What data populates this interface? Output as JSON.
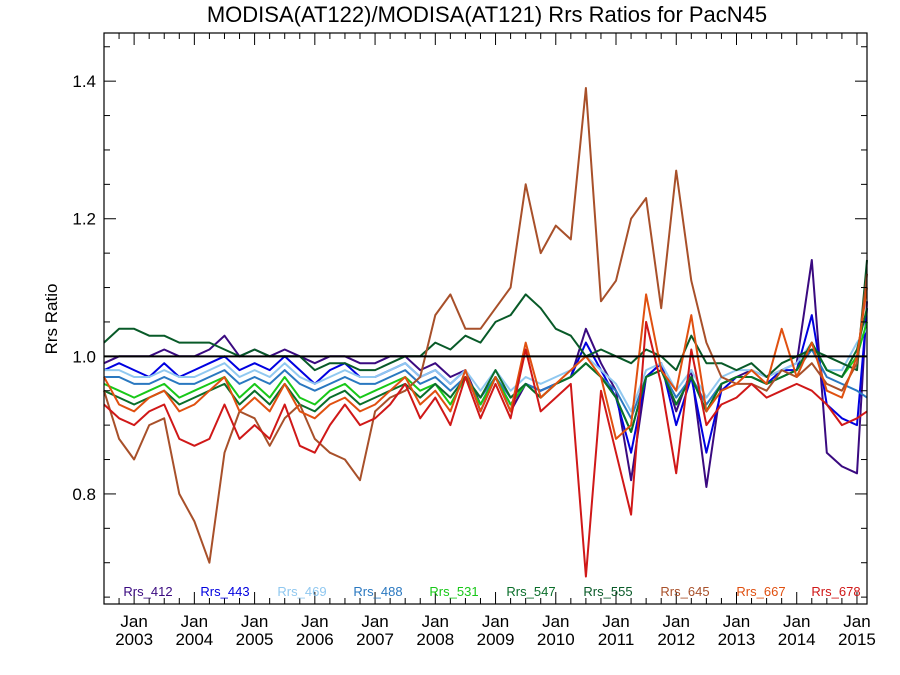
{
  "chart_data": {
    "type": "line",
    "title": "MODISA(AT122)/MODISA(AT121)  Rrs Ratios for PacN45",
    "xlabel": "",
    "ylabel": "Rrs Ratio",
    "xlim": [
      "2002-07-01",
      "2015-03-01"
    ],
    "ylim": [
      0.64,
      1.47
    ],
    "yticks": [
      0.8,
      1.0,
      1.2,
      1.4
    ],
    "ytick_labels": [
      "0.8",
      "1.0",
      "1.2",
      "1.4"
    ],
    "xticks": [
      {
        "month": "Jan",
        "year": "2003",
        "date": "2003-01-01"
      },
      {
        "month": "Jan",
        "year": "2004",
        "date": "2004-01-01"
      },
      {
        "month": "Jan",
        "year": "2005",
        "date": "2005-01-01"
      },
      {
        "month": "Jan",
        "year": "2006",
        "date": "2006-01-01"
      },
      {
        "month": "Jan",
        "year": "2007",
        "date": "2007-01-01"
      },
      {
        "month": "Jan",
        "year": "2008",
        "date": "2008-01-01"
      },
      {
        "month": "Jan",
        "year": "2009",
        "date": "2009-01-01"
      },
      {
        "month": "Jan",
        "year": "2010",
        "date": "2010-01-01"
      },
      {
        "month": "Jan",
        "year": "2011",
        "date": "2011-01-01"
      },
      {
        "month": "Jan",
        "year": "2012",
        "date": "2012-01-01"
      },
      {
        "month": "Jan",
        "year": "2013",
        "date": "2013-01-01"
      },
      {
        "month": "Jan",
        "year": "2014",
        "date": "2014-01-01"
      },
      {
        "month": "Jan",
        "year": "2015",
        "date": "2015-01-01"
      }
    ],
    "reference_line": 1.0,
    "grid": false,
    "legend_position": "bottom",
    "dates": [
      "2002-07",
      "2002-10",
      "2003-01",
      "2003-04",
      "2003-07",
      "2003-10",
      "2004-01",
      "2004-04",
      "2004-07",
      "2004-10",
      "2005-01",
      "2005-04",
      "2005-07",
      "2005-10",
      "2006-01",
      "2006-04",
      "2006-07",
      "2006-10",
      "2007-01",
      "2007-04",
      "2007-07",
      "2007-10",
      "2008-01",
      "2008-04",
      "2008-07",
      "2008-10",
      "2009-01",
      "2009-04",
      "2009-07",
      "2009-10",
      "2010-01",
      "2010-04",
      "2010-07",
      "2010-10",
      "2011-01",
      "2011-04",
      "2011-07",
      "2011-10",
      "2012-01",
      "2012-04",
      "2012-07",
      "2012-10",
      "2013-01",
      "2013-04",
      "2013-07",
      "2013-10",
      "2014-01",
      "2014-04",
      "2014-07",
      "2014-10",
      "2015-01",
      "2015-03"
    ],
    "series": [
      {
        "name": "Rrs_412",
        "color": "#3a0a80",
        "values": [
          0.99,
          1.0,
          1.0,
          1.0,
          1.01,
          1.0,
          1.0,
          1.01,
          1.03,
          1.0,
          1.01,
          1.0,
          1.01,
          1.0,
          0.99,
          1.0,
          1.0,
          0.99,
          0.99,
          1.0,
          1.0,
          0.98,
          0.99,
          0.97,
          0.98,
          0.93,
          0.97,
          0.92,
          0.96,
          0.95,
          0.96,
          0.97,
          1.04,
          0.99,
          0.95,
          0.82,
          0.97,
          0.99,
          0.92,
          0.98,
          0.81,
          0.96,
          0.97,
          0.98,
          0.97,
          0.98,
          0.99,
          1.14,
          0.86,
          0.84,
          0.83,
          1.08
        ]
      },
      {
        "name": "Rrs_443",
        "color": "#0000e0",
        "values": [
          0.98,
          0.99,
          0.98,
          0.97,
          0.99,
          0.97,
          0.98,
          0.99,
          1.0,
          0.98,
          0.99,
          0.98,
          1.0,
          0.98,
          0.96,
          0.98,
          0.99,
          0.97,
          0.97,
          0.98,
          0.99,
          0.97,
          0.98,
          0.96,
          0.98,
          0.92,
          0.97,
          0.93,
          0.96,
          0.95,
          0.96,
          0.97,
          1.02,
          0.98,
          0.94,
          0.86,
          0.97,
          0.99,
          0.9,
          0.97,
          0.86,
          0.95,
          0.97,
          0.97,
          0.96,
          0.98,
          0.98,
          1.06,
          0.93,
          0.91,
          0.9,
          1.07
        ]
      },
      {
        "name": "Rrs_469",
        "color": "#90c8f0",
        "values": [
          0.98,
          0.98,
          0.97,
          0.97,
          0.98,
          0.97,
          0.97,
          0.98,
          0.99,
          0.97,
          0.98,
          0.97,
          0.99,
          0.97,
          0.96,
          0.97,
          0.98,
          0.97,
          0.97,
          0.98,
          0.99,
          0.97,
          0.98,
          0.96,
          0.98,
          0.95,
          0.98,
          0.95,
          0.97,
          0.96,
          0.97,
          0.98,
          1.0,
          0.98,
          0.96,
          0.92,
          0.98,
          0.99,
          0.95,
          0.98,
          0.94,
          0.97,
          0.98,
          0.98,
          0.97,
          0.98,
          0.99,
          1.02,
          0.98,
          0.98,
          1.02,
          1.04
        ]
      },
      {
        "name": "Rrs_488",
        "color": "#2a78c0",
        "values": [
          0.97,
          0.97,
          0.96,
          0.96,
          0.97,
          0.96,
          0.96,
          0.97,
          0.98,
          0.96,
          0.97,
          0.96,
          0.98,
          0.96,
          0.95,
          0.96,
          0.97,
          0.96,
          0.96,
          0.97,
          0.98,
          0.96,
          0.97,
          0.95,
          0.97,
          0.94,
          0.97,
          0.94,
          0.96,
          0.95,
          0.96,
          0.97,
          0.99,
          0.97,
          0.95,
          0.91,
          0.97,
          0.98,
          0.94,
          0.97,
          0.93,
          0.96,
          0.97,
          0.97,
          0.96,
          0.97,
          0.98,
          1.01,
          0.97,
          0.96,
          0.95,
          0.94
        ]
      },
      {
        "name": "Rrs_531",
        "color": "#18c818",
        "values": [
          0.96,
          0.95,
          0.94,
          0.95,
          0.96,
          0.94,
          0.95,
          0.96,
          0.97,
          0.94,
          0.96,
          0.94,
          0.97,
          0.94,
          0.93,
          0.95,
          0.96,
          0.94,
          0.95,
          0.96,
          0.97,
          0.95,
          0.96,
          0.93,
          0.97,
          0.93,
          0.97,
          0.93,
          0.96,
          0.94,
          0.96,
          0.97,
          0.99,
          0.97,
          0.94,
          0.89,
          0.97,
          0.98,
          0.93,
          0.97,
          0.92,
          0.96,
          0.97,
          0.97,
          0.96,
          0.97,
          0.98,
          1.02,
          0.98,
          0.97,
          1.0,
          1.05
        ]
      },
      {
        "name": "Rrs_547",
        "color": "#0a6e2a",
        "values": [
          0.95,
          0.94,
          0.93,
          0.94,
          0.95,
          0.93,
          0.94,
          0.95,
          0.96,
          0.93,
          0.95,
          0.93,
          0.96,
          0.93,
          0.92,
          0.94,
          0.95,
          0.93,
          0.94,
          0.95,
          0.96,
          0.94,
          0.96,
          0.94,
          0.97,
          0.94,
          0.98,
          0.94,
          0.96,
          0.94,
          0.96,
          0.97,
          0.99,
          0.97,
          0.94,
          0.89,
          0.97,
          0.98,
          0.93,
          0.97,
          0.92,
          0.96,
          0.97,
          0.97,
          0.96,
          0.97,
          0.98,
          1.02,
          0.98,
          0.97,
          1.01,
          1.07
        ]
      },
      {
        "name": "Rrs_555",
        "color": "#085a28",
        "values": [
          1.02,
          1.04,
          1.04,
          1.03,
          1.03,
          1.02,
          1.02,
          1.02,
          1.01,
          1.0,
          1.01,
          1.0,
          1.0,
          1.0,
          0.98,
          0.99,
          0.99,
          0.98,
          0.98,
          0.99,
          1.0,
          1.0,
          1.02,
          1.01,
          1.03,
          1.02,
          1.05,
          1.06,
          1.09,
          1.07,
          1.04,
          1.03,
          1.0,
          1.01,
          1.0,
          0.99,
          1.01,
          1.0,
          0.98,
          1.03,
          0.99,
          0.99,
          0.98,
          0.99,
          0.97,
          0.99,
          1.0,
          1.01,
          1.0,
          0.99,
          0.98,
          1.14
        ]
      },
      {
        "name": "Rrs_645",
        "color": "#a8502a",
        "values": [
          0.95,
          0.88,
          0.85,
          0.9,
          0.91,
          0.8,
          0.76,
          0.7,
          0.86,
          0.92,
          0.91,
          0.87,
          0.91,
          0.93,
          0.88,
          0.86,
          0.85,
          0.82,
          0.92,
          0.94,
          0.95,
          0.97,
          1.06,
          1.09,
          1.04,
          1.04,
          1.07,
          1.1,
          1.25,
          1.15,
          1.19,
          1.17,
          1.39,
          1.08,
          1.11,
          1.2,
          1.23,
          1.07,
          1.27,
          1.11,
          1.02,
          0.97,
          0.96,
          0.96,
          0.95,
          0.98,
          0.97,
          0.99,
          0.96,
          0.95,
          0.99,
          1.12
        ]
      },
      {
        "name": "Rrs_667",
        "color": "#e05010",
        "values": [
          0.97,
          0.93,
          0.92,
          0.94,
          0.95,
          0.92,
          0.93,
          0.95,
          0.97,
          0.92,
          0.94,
          0.92,
          0.96,
          0.92,
          0.91,
          0.93,
          0.94,
          0.92,
          0.93,
          0.95,
          0.97,
          0.93,
          0.95,
          0.92,
          0.98,
          0.92,
          0.97,
          0.92,
          1.02,
          0.94,
          0.96,
          0.98,
          1.0,
          0.97,
          0.88,
          0.9,
          1.09,
          0.98,
          0.95,
          1.06,
          0.92,
          0.95,
          0.96,
          0.98,
          0.96,
          1.04,
          0.97,
          1.02,
          0.95,
          0.94,
          1.0,
          1.1
        ]
      },
      {
        "name": "Rrs_678",
        "color": "#d01818",
        "values": [
          0.93,
          0.91,
          0.9,
          0.92,
          0.93,
          0.88,
          0.87,
          0.88,
          0.93,
          0.88,
          0.9,
          0.88,
          0.93,
          0.87,
          0.86,
          0.9,
          0.93,
          0.9,
          0.91,
          0.93,
          0.96,
          0.91,
          0.94,
          0.9,
          0.97,
          0.91,
          0.96,
          0.91,
          1.01,
          0.92,
          0.94,
          0.96,
          0.68,
          0.95,
          0.86,
          0.77,
          1.05,
          0.96,
          0.83,
          1.01,
          0.9,
          0.93,
          0.94,
          0.96,
          0.94,
          0.95,
          0.96,
          0.95,
          0.93,
          0.9,
          0.91,
          0.92
        ]
      }
    ]
  }
}
